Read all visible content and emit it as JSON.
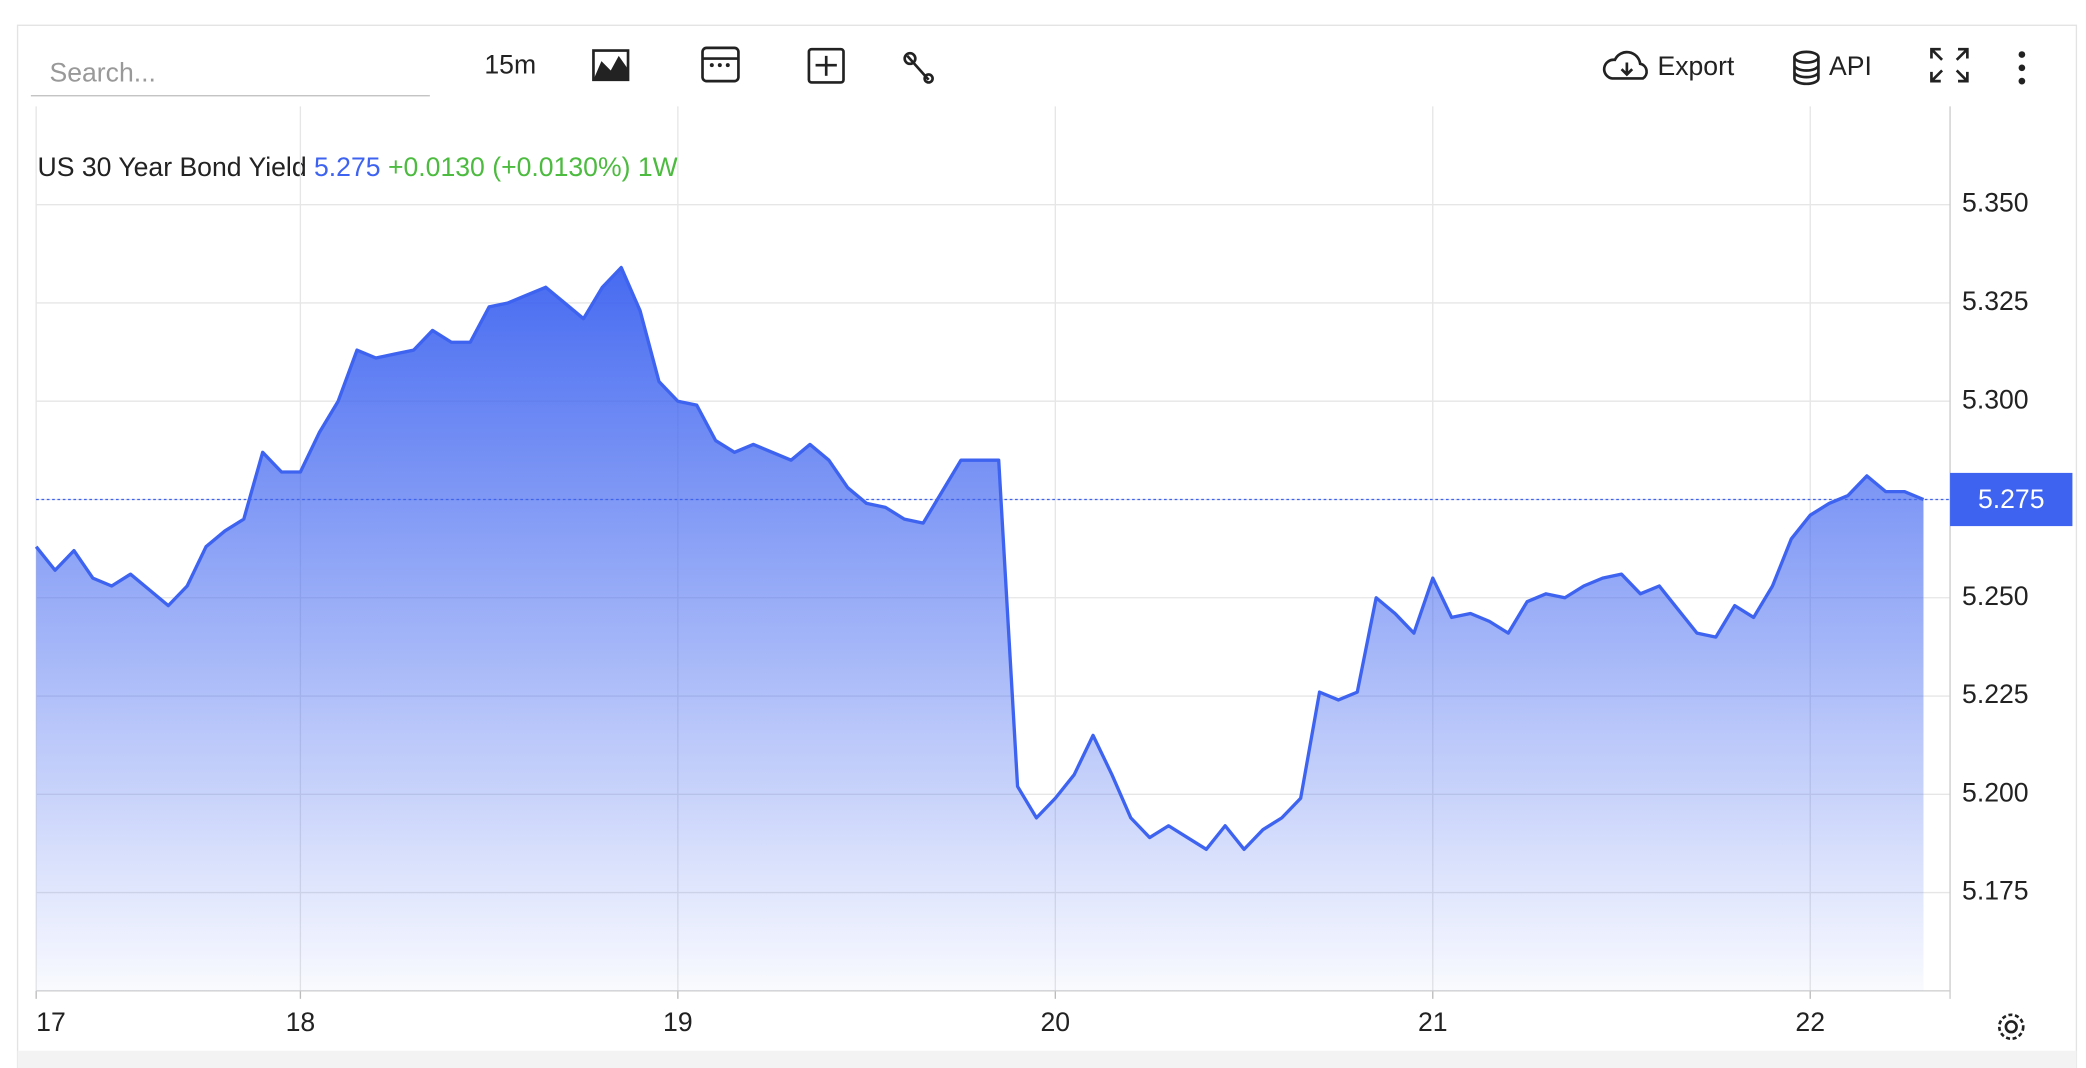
{
  "toolbar": {
    "search": "Search...",
    "interval": "15m",
    "export": "Export",
    "api": "API"
  },
  "chart_data": {
    "type": "area",
    "title": "US 30 Year Bond Yield",
    "price": 5.275,
    "change": "+0.0130",
    "change_percent": "(+0.0130%)",
    "period": "1W",
    "color": "#3d63f0",
    "grid": true,
    "last_value": 5.275,
    "categories": [
      "17",
      null,
      null,
      null,
      null,
      null,
      null,
      null,
      null,
      null,
      null,
      null,
      null,
      null,
      "18",
      null,
      null,
      null,
      null,
      null,
      null,
      null,
      null,
      null,
      null,
      null,
      null,
      null,
      null,
      null,
      null,
      null,
      null,
      null,
      "19",
      null,
      null,
      null,
      null,
      null,
      null,
      null,
      null,
      null,
      null,
      null,
      null,
      null,
      null,
      null,
      null,
      null,
      null,
      null,
      "20",
      null,
      null,
      null,
      null,
      null,
      null,
      null,
      null,
      null,
      null,
      null,
      null,
      null,
      null,
      null,
      null,
      null,
      null,
      null,
      "21",
      null,
      null,
      null,
      null,
      null,
      null,
      null,
      null,
      null,
      null,
      null,
      null,
      null,
      null,
      null,
      null,
      null,
      null,
      null,
      "22",
      null,
      null,
      null,
      null,
      null,
      null
    ],
    "values": [
      5.263,
      5.257,
      5.262,
      5.255,
      5.253,
      5.256,
      5.252,
      5.248,
      5.253,
      5.263,
      5.267,
      5.27,
      5.287,
      5.282,
      5.282,
      5.292,
      5.3,
      5.313,
      5.311,
      5.312,
      5.313,
      5.318,
      5.315,
      5.315,
      5.324,
      5.325,
      5.327,
      5.329,
      5.325,
      5.321,
      5.329,
      5.334,
      5.323,
      5.305,
      5.3,
      5.299,
      5.29,
      5.287,
      5.289,
      5.287,
      5.285,
      5.289,
      5.285,
      5.278,
      5.274,
      5.273,
      5.27,
      5.269,
      5.277,
      5.285,
      5.285,
      5.285,
      5.202,
      5.194,
      5.199,
      5.205,
      5.215,
      5.205,
      5.194,
      5.189,
      5.192,
      5.189,
      5.186,
      5.192,
      5.186,
      5.191,
      5.194,
      5.199,
      5.226,
      5.224,
      5.226,
      5.25,
      5.246,
      5.241,
      5.255,
      5.245,
      5.246,
      5.244,
      5.241,
      5.249,
      5.251,
      5.25,
      5.253,
      5.255,
      5.256,
      5.251,
      5.253,
      5.247,
      5.241,
      5.24,
      5.248,
      5.245,
      5.253,
      5.265,
      5.271,
      5.274,
      5.276,
      5.281,
      5.277,
      5.277,
      5.275
    ],
    "ylim": [
      5.15,
      5.375
    ],
    "yticks": [
      {
        "value": 5.35,
        "label": "5.350"
      },
      5.325,
      {
        "value": 5.3,
        "label": "5.300"
      },
      5.275,
      {
        "value": 5.25,
        "label": "5.250"
      },
      5.225,
      {
        "value": 5.2,
        "label": "5.200"
      },
      5.175
    ]
  }
}
